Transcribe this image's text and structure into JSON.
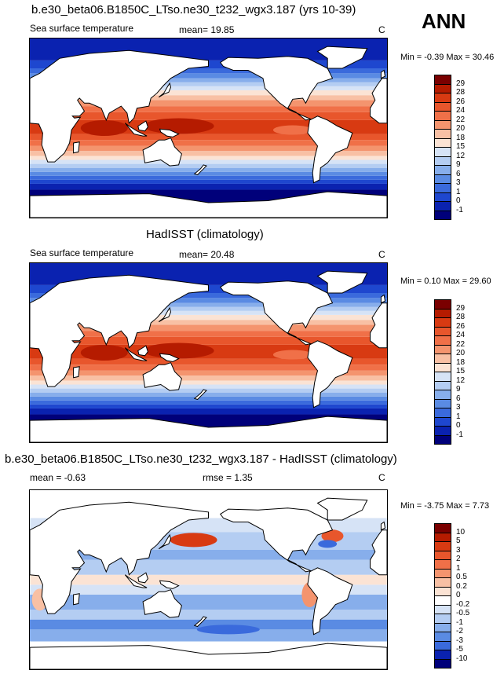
{
  "season": "ANN",
  "panels": [
    {
      "title": "b.e30_beta06.B1850C_LTso.ne30_t232_wgx3.187 (yrs 10-39)",
      "left_label": "Sea surface temperature",
      "stat_label": "mean=  19.85",
      "units": "C",
      "minmax": "Min = -0.39 Max =  30.46",
      "colorbar": {
        "labels": [
          "29",
          "28",
          "26",
          "24",
          "22",
          "20",
          "18",
          "15",
          "12",
          "9",
          "6",
          "3",
          "1",
          "0",
          "-1"
        ],
        "colors": [
          "#7a0000",
          "#b51b00",
          "#d83a12",
          "#e8562c",
          "#f07048",
          "#f4946e",
          "#f8c0a4",
          "#fbe3d4",
          "#d6e3f6",
          "#b4cdf2",
          "#87aeeb",
          "#5a8be3",
          "#3a6adc",
          "#1e47cf",
          "#0a22b0",
          "#00007a"
        ]
      },
      "map_type": "sst"
    },
    {
      "title": "HadISST (climatology)",
      "left_label": "Sea surface temperature",
      "stat_label": "mean=  20.48",
      "units": "C",
      "minmax": "Min =  0.10 Max =  29.60",
      "colorbar": {
        "labels": [
          "29",
          "28",
          "26",
          "24",
          "22",
          "20",
          "18",
          "15",
          "12",
          "9",
          "6",
          "3",
          "1",
          "0",
          "-1"
        ],
        "colors": [
          "#7a0000",
          "#b51b00",
          "#d83a12",
          "#e8562c",
          "#f07048",
          "#f4946e",
          "#f8c0a4",
          "#fbe3d4",
          "#d6e3f6",
          "#b4cdf2",
          "#87aeeb",
          "#5a8be3",
          "#3a6adc",
          "#1e47cf",
          "#0a22b0",
          "#00007a"
        ]
      },
      "map_type": "sst"
    },
    {
      "title": "b.e30_beta06.B1850C_LTso.ne30_t232_wgx3.187 - HadISST (climatology)",
      "left_label": "mean =  -0.63",
      "stat_label": "rmse =   1.35",
      "units": "C",
      "minmax": "Min = -3.75 Max =  7.73",
      "colorbar": {
        "labels": [
          "10",
          "5",
          "3",
          "2",
          "1",
          "0.5",
          "0.2",
          "0",
          "-0.2",
          "-0.5",
          "-1",
          "-2",
          "-3",
          "-5",
          "-10"
        ],
        "colors": [
          "#7a0000",
          "#b51b00",
          "#d83a12",
          "#e8562c",
          "#f07048",
          "#f4946e",
          "#f8c0a4",
          "#fbe3d4",
          "#ffffff",
          "#d6e3f6",
          "#b4cdf2",
          "#87aeeb",
          "#5a8be3",
          "#3a6adc",
          "#0a22b0",
          "#00007a"
        ]
      },
      "map_type": "diff"
    }
  ]
}
